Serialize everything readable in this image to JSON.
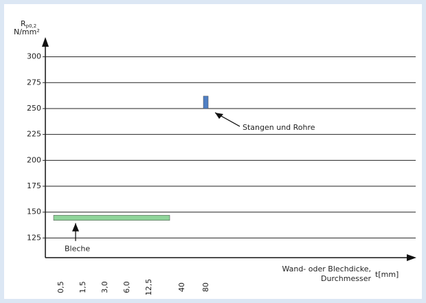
{
  "chart_data": {
    "type": "range_bar",
    "ylabel": "R",
    "ylabel_sub": "p0,2",
    "yunit": "N/mm²",
    "xlabel_line1": "Wand- oder Blechdicke,",
    "xlabel_line2": "Durchmesser",
    "xunit": "t[mm]",
    "categories": [
      "0,5",
      "1,5",
      "3,0",
      "6,0",
      "12,5",
      "40",
      "80"
    ],
    "ylim": [
      106,
      319
    ],
    "yticks": [
      125,
      150,
      175,
      200,
      225,
      250,
      275,
      300
    ],
    "grid": true,
    "bars": [
      {
        "name": "Bleche",
        "color": "#8fd49a",
        "x_start": "0,5",
        "x_end": "12,5",
        "low": 142,
        "high": 147
      },
      {
        "name": "Stangen und Rohre",
        "color": "#4f7fc4",
        "x_start": "80",
        "x_end": "80",
        "low": 250,
        "high": 262
      }
    ]
  }
}
